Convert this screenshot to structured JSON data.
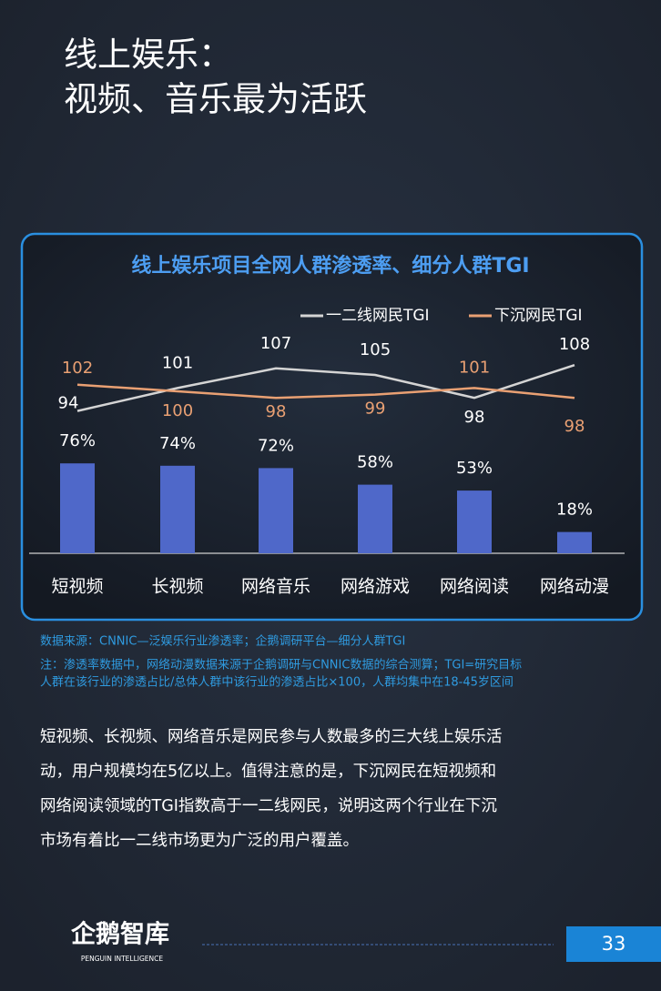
{
  "header": {
    "title": [
      "线上娱乐：",
      "视频、音乐最为活跃"
    ]
  },
  "chart_data": {
    "type": "bar",
    "title": "线上娱乐项目全网人群渗透率、细分人群TGI",
    "categories": [
      "短视频",
      "长视频",
      "网络音乐",
      "网络游戏",
      "网络阅读",
      "网络动漫"
    ],
    "values": [
      76,
      74,
      72,
      58,
      53,
      18
    ],
    "value_labels": [
      "76%",
      "74%",
      "72%",
      "58%",
      "53%",
      "18%"
    ],
    "color": "#4f68c9",
    "ylim": [
      0,
      100
    ],
    "y2lim": [
      80,
      120
    ],
    "series": [
      {
        "name": "一二线网民TGI",
        "color": "#d4d4d4",
        "axis": "y2",
        "values": [
          94,
          101,
          107,
          105,
          98,
          108
        ]
      },
      {
        "name": "下沉网民TGI",
        "color": "#e9a073",
        "axis": "y2",
        "values": [
          102,
          100,
          98,
          99,
          101,
          98
        ]
      }
    ],
    "legend": "top-right"
  },
  "notes": [
    "数据来源：CNNIC—泛娱乐行业渗透率；企鹅调研平台—细分人群TGI",
    "注：渗透率数据中，网络动漫数据来源于企鹅调研与CNNIC数据的综合测算；TGI=研究目标",
    "人群在该行业的渗透占比/总体人群中该行业的渗透占比×100，人群均集中在18-45岁区间"
  ],
  "body": [
    "短视频、长视频、网络音乐是网民参与人数最多的三大线上娱乐活",
    "动，用户规模均在5亿以上。值得注意的是，下沉网民在短视频和",
    "网络阅读领域的TGI指数高于一二线网民，说明这两个行业在下沉",
    "市场有着比一二线市场更为广泛的用户覆盖。"
  ],
  "footer": {
    "logo": "企鹅智库",
    "logo_sub": "PENGUIN INTELLIGENCE",
    "page": "33"
  }
}
